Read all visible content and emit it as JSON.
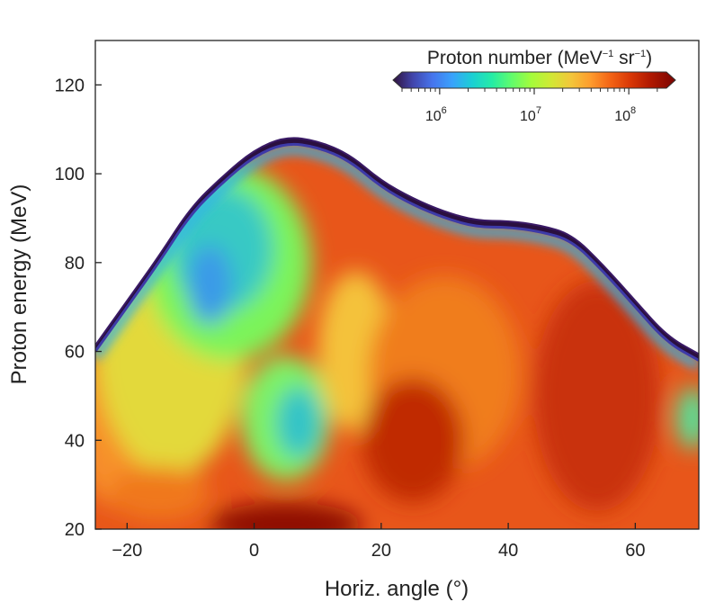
{
  "chart_data": {
    "type": "heatmap",
    "title": "",
    "xlabel": "Horiz. angle (°)",
    "ylabel": "Proton energy (MeV)",
    "xlim": [
      -25,
      70
    ],
    "ylim": [
      20,
      130
    ],
    "x_ticks": [
      -20,
      0,
      20,
      40,
      60
    ],
    "x_tick_labels": [
      "−20",
      "0",
      "20",
      "40",
      "60"
    ],
    "y_ticks": [
      20,
      40,
      60,
      80,
      100,
      120
    ],
    "y_tick_labels": [
      "20",
      "40",
      "60",
      "80",
      "100",
      "120"
    ],
    "colorbar": {
      "title_parts": [
        "Proton number (MeV",
        "−1",
        " sr",
        "−1",
        ")"
      ],
      "scale": "log",
      "range": [
        400000,
        250000000
      ],
      "ticks": [
        1000000,
        10000000,
        100000000
      ],
      "tick_bases": [
        "10",
        "10",
        "10"
      ],
      "tick_exponents": [
        "6",
        "7",
        "8"
      ],
      "colormap": "turbo",
      "placement": "top-right inside plot"
    },
    "cutoff_energy_profile": {
      "angle": [
        -25,
        -20,
        -15,
        -10,
        -5,
        0,
        5,
        10,
        15,
        20,
        25,
        30,
        35,
        40,
        45,
        50,
        55,
        60,
        65,
        70
      ],
      "max_energy_MeV": [
        60,
        70,
        80,
        91,
        98,
        104,
        107,
        106,
        103,
        97,
        93,
        90,
        88,
        88,
        87,
        85,
        78,
        70,
        62,
        58
      ]
    },
    "features": [
      {
        "region": "high-energy lobe, angle -15 to 5",
        "level": "~1e6-1e7"
      },
      {
        "region": "low-yield streak, angle -5 to 15, energy 35-55 MeV",
        "level": "~1e6"
      },
      {
        "region": "bulk, angle 15 to 70",
        "level": "~1e8"
      },
      {
        "region": "low energy near 0°, below 25 MeV",
        "level": ">1e8"
      }
    ]
  }
}
